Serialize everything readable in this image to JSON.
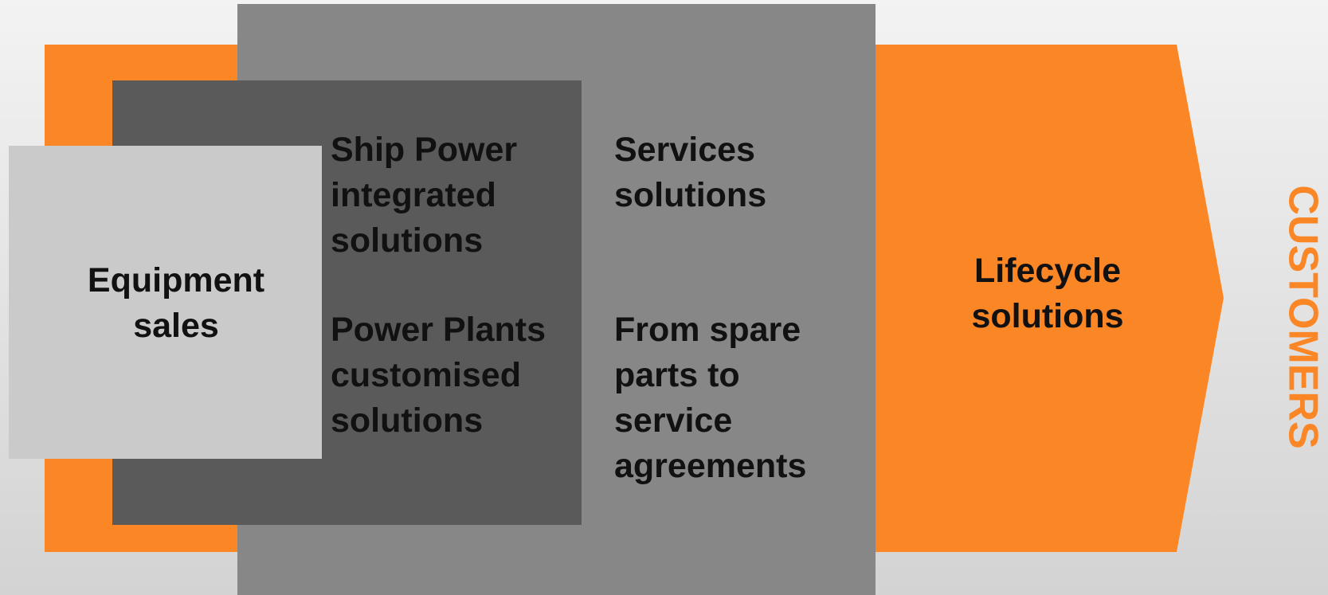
{
  "equipment": {
    "lines": [
      "Equipment",
      "sales"
    ]
  },
  "ship_power": {
    "lines": [
      "Ship Power",
      "integrated",
      "solutions"
    ]
  },
  "power_plants": {
    "lines": [
      "Power Plants",
      "customised",
      "solutions"
    ]
  },
  "services": {
    "lines": [
      "Services",
      "solutions"
    ]
  },
  "spare_parts": {
    "lines": [
      "From spare",
      "parts to",
      "service",
      "agreements"
    ]
  },
  "lifecycle": {
    "lines": [
      "Lifecycle",
      "solutions"
    ]
  },
  "customers": "CUSTOMERS"
}
